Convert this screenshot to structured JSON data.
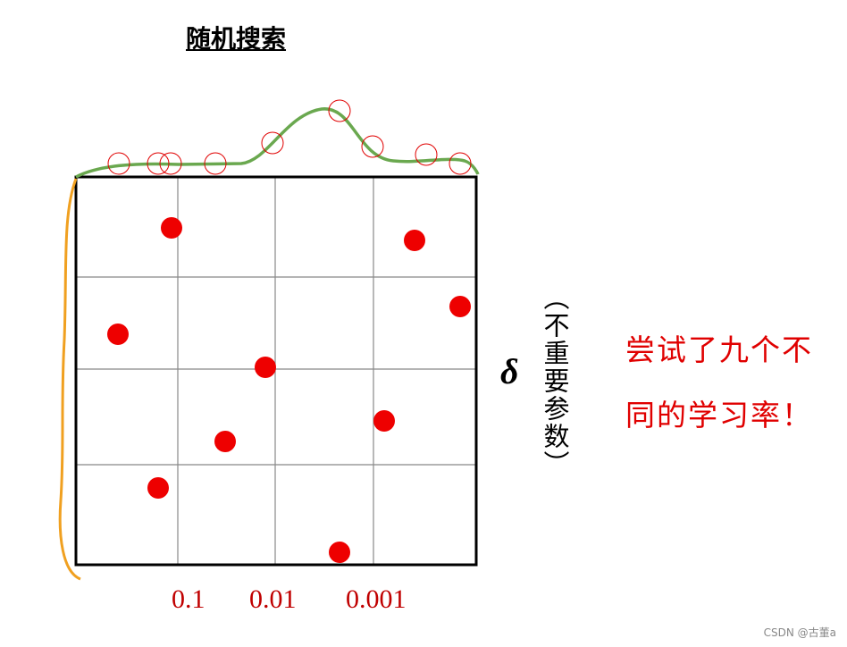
{
  "title": "随机搜索",
  "axis_labels": [
    "0.1",
    "0.01",
    "0.001"
  ],
  "side_symbol": "δ",
  "side_note": "（不重要参数）",
  "annotation": [
    "尝试了九个不",
    "同的学习率！"
  ],
  "watermark": "CSDN @古董a"
}
